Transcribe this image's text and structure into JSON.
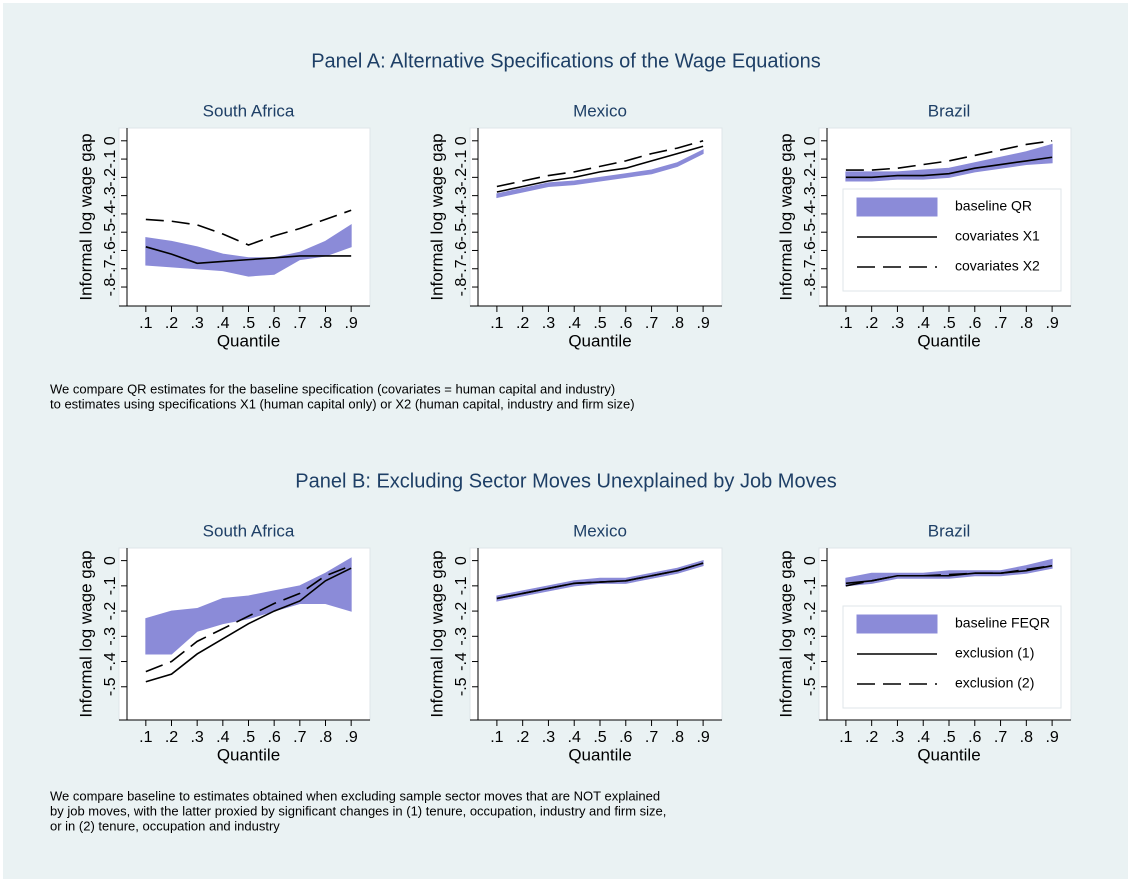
{
  "panels": [
    {
      "title": "Panel A: Alternative Specifications of the Wage Equations",
      "note": [
        "We compare QR estimates for the baseline specification (covariates = human capital and industry)",
        "to estimates using specifications X1 (human capital only) or X2 (human capital, industry and firm size)"
      ]
    },
    {
      "title": "Panel B: Excluding Sector Moves Unexplained by Job Moves",
      "note": [
        "We compare baseline to estimates obtained when excluding sample sector moves that are NOT explained",
        "by job moves, with the latter proxied by significant changes in (1) tenure, occupation, industry and firm size,",
        "or in (2) tenure, occupation and industry"
      ]
    }
  ],
  "chart_data": [
    {
      "type": "line",
      "title": "South Africa",
      "x_label": "Quantile",
      "y_label": "Informal log wage gap",
      "x": [
        0.1,
        0.2,
        0.3,
        0.4,
        0.5,
        0.6,
        0.7,
        0.8,
        0.9
      ],
      "xlim": [
        0.05,
        0.95
      ],
      "xticks": [
        {
          "value": 0.1,
          "label": ".1"
        },
        {
          "value": 0.2,
          "label": ".2"
        },
        {
          "value": 0.3,
          "label": ".3"
        },
        {
          "value": 0.4,
          "label": ".4"
        },
        {
          "value": 0.5,
          "label": ".5"
        },
        {
          "value": 0.6,
          "label": ".6"
        },
        {
          "value": 0.7,
          "label": ".7"
        },
        {
          "value": 0.8,
          "label": ".8"
        },
        {
          "value": 0.9,
          "label": ".9"
        }
      ],
      "ylim": [
        -0.86,
        0.07
      ],
      "yticks": [
        {
          "value": -0.8,
          "label": "-.8"
        },
        {
          "value": -0.7,
          "label": "-.7"
        },
        {
          "value": -0.6,
          "label": "-.6"
        },
        {
          "value": -0.5,
          "label": "-.5"
        },
        {
          "value": -0.4,
          "label": "-.4"
        },
        {
          "value": -0.3,
          "label": "-.3"
        },
        {
          "value": -0.2,
          "label": "-.2"
        },
        {
          "value": -0.1,
          "label": "-.1"
        },
        0
      ],
      "series": [
        {
          "color": "#8b8bd8",
          "upper": [
            -0.53,
            -0.55,
            -0.58,
            -0.62,
            -0.64,
            -0.64,
            -0.61,
            -0.55,
            -0.46
          ],
          "lower": [
            -0.68,
            -0.69,
            -0.7,
            -0.71,
            -0.74,
            -0.73,
            -0.65,
            -0.63,
            -0.58
          ]
        },
        {
          "color": "#000000",
          "dash": false,
          "values": [
            -0.58,
            -0.62,
            -0.67,
            -0.66,
            -0.65,
            -0.64,
            -0.63,
            -0.63,
            -0.63
          ]
        },
        {
          "color": "#000000",
          "dash": true,
          "values": [
            -0.43,
            -0.44,
            -0.46,
            -0.51,
            -0.57,
            -0.52,
            -0.48,
            -0.43,
            -0.38
          ]
        }
      ]
    },
    {
      "type": "line",
      "title": "Mexico",
      "x_label": "Quantile",
      "y_label": "Informal log wage gap",
      "x": [
        0.1,
        0.2,
        0.3,
        0.4,
        0.5,
        0.6,
        0.7,
        0.8,
        0.9
      ],
      "xlim": [
        0.05,
        0.95
      ],
      "xticks": [
        {
          "value": 0.1,
          "label": ".1"
        },
        {
          "value": 0.2,
          "label": ".2"
        },
        {
          "value": 0.3,
          "label": ".3"
        },
        {
          "value": 0.4,
          "label": ".4"
        },
        {
          "value": 0.5,
          "label": ".5"
        },
        {
          "value": 0.6,
          "label": ".6"
        },
        {
          "value": 0.7,
          "label": ".7"
        },
        {
          "value": 0.8,
          "label": ".8"
        },
        {
          "value": 0.9,
          "label": ".9"
        }
      ],
      "ylim": [
        -0.86,
        0.07
      ],
      "yticks": [
        {
          "value": -0.8,
          "label": "-.8"
        },
        {
          "value": -0.7,
          "label": "-.7"
        },
        {
          "value": -0.6,
          "label": "-.6"
        },
        {
          "value": -0.5,
          "label": "-.5"
        },
        {
          "value": -0.4,
          "label": "-.4"
        },
        {
          "value": -0.3,
          "label": "-.3"
        },
        {
          "value": -0.2,
          "label": "-.2"
        },
        {
          "value": -0.1,
          "label": "-.1"
        },
        0
      ],
      "series": [
        {
          "color": "#8b8bd8",
          "upper": [
            -0.29,
            -0.26,
            -0.23,
            -0.22,
            -0.2,
            -0.18,
            -0.16,
            -0.12,
            -0.05
          ],
          "lower": [
            -0.31,
            -0.28,
            -0.25,
            -0.24,
            -0.22,
            -0.2,
            -0.18,
            -0.14,
            -0.07
          ]
        },
        {
          "color": "#000000",
          "dash": false,
          "values": [
            -0.28,
            -0.25,
            -0.22,
            -0.2,
            -0.17,
            -0.15,
            -0.11,
            -0.07,
            -0.03
          ]
        },
        {
          "color": "#000000",
          "dash": true,
          "values": [
            -0.25,
            -0.22,
            -0.19,
            -0.17,
            -0.14,
            -0.11,
            -0.07,
            -0.04,
            0.0
          ]
        }
      ]
    },
    {
      "type": "line",
      "title": "Brazil",
      "x_label": "Quantile",
      "y_label": "Informal log wage gap",
      "legend": "right",
      "x": [
        0.1,
        0.2,
        0.3,
        0.4,
        0.5,
        0.6,
        0.7,
        0.8,
        0.9
      ],
      "xlim": [
        0.05,
        0.95
      ],
      "xticks": [
        {
          "value": 0.1,
          "label": ".1"
        },
        {
          "value": 0.2,
          "label": ".2"
        },
        {
          "value": 0.3,
          "label": ".3"
        },
        {
          "value": 0.4,
          "label": ".4"
        },
        {
          "value": 0.5,
          "label": ".5"
        },
        {
          "value": 0.6,
          "label": ".6"
        },
        {
          "value": 0.7,
          "label": ".7"
        },
        {
          "value": 0.8,
          "label": ".8"
        },
        {
          "value": 0.9,
          "label": ".9"
        }
      ],
      "ylim": [
        -0.86,
        0.07
      ],
      "yticks": [
        {
          "value": -0.8,
          "label": "-.8"
        },
        {
          "value": -0.7,
          "label": "-.7"
        },
        {
          "value": -0.6,
          "label": "-.6"
        },
        {
          "value": -0.5,
          "label": "-.5"
        },
        {
          "value": -0.4,
          "label": "-.4"
        },
        {
          "value": -0.3,
          "label": "-.3"
        },
        {
          "value": -0.2,
          "label": "-.2"
        },
        {
          "value": -0.1,
          "label": "-.1"
        },
        0
      ],
      "series": [
        {
          "name": "baseline QR",
          "color": "#8b8bd8",
          "upper": [
            -0.17,
            -0.17,
            -0.17,
            -0.16,
            -0.15,
            -0.12,
            -0.09,
            -0.06,
            -0.02
          ],
          "lower": [
            -0.22,
            -0.22,
            -0.21,
            -0.21,
            -0.2,
            -0.17,
            -0.15,
            -0.13,
            -0.12
          ]
        },
        {
          "name": "covariates X1",
          "color": "#000000",
          "dash": false,
          "values": [
            -0.2,
            -0.2,
            -0.19,
            -0.19,
            -0.18,
            -0.15,
            -0.13,
            -0.11,
            -0.09
          ]
        },
        {
          "name": "covariates X2",
          "color": "#000000",
          "dash": true,
          "values": [
            -0.16,
            -0.16,
            -0.15,
            -0.13,
            -0.11,
            -0.08,
            -0.05,
            -0.02,
            0.0
          ]
        }
      ]
    },
    {
      "type": "line",
      "title": "South Africa",
      "x_label": "Quantile",
      "y_label": "Informal log wage gap",
      "x": [
        0.1,
        0.2,
        0.3,
        0.4,
        0.5,
        0.6,
        0.7,
        0.8,
        0.9
      ],
      "xlim": [
        0.05,
        0.95
      ],
      "xticks": [
        {
          "value": 0.1,
          "label": ".1"
        },
        {
          "value": 0.2,
          "label": ".2"
        },
        {
          "value": 0.3,
          "label": ".3"
        },
        {
          "value": 0.4,
          "label": ".4"
        },
        {
          "value": 0.5,
          "label": ".5"
        },
        {
          "value": 0.6,
          "label": ".6"
        },
        {
          "value": 0.7,
          "label": ".7"
        },
        {
          "value": 0.8,
          "label": ".8"
        },
        {
          "value": 0.9,
          "label": ".9"
        }
      ],
      "ylim": [
        -0.6,
        0.05
      ],
      "yticks": [
        {
          "value": -0.5,
          "label": "-.5"
        },
        {
          "value": -0.4,
          "label": "-.4"
        },
        {
          "value": -0.3,
          "label": "-.3"
        },
        {
          "value": -0.2,
          "label": "-.2"
        },
        {
          "value": -0.1,
          "label": "-.1"
        },
        0
      ],
      "series": [
        {
          "color": "#8b8bd8",
          "upper": [
            -0.23,
            -0.2,
            -0.19,
            -0.15,
            -0.14,
            -0.12,
            -0.1,
            -0.05,
            0.01
          ],
          "lower": [
            -0.37,
            -0.37,
            -0.28,
            -0.25,
            -0.23,
            -0.2,
            -0.17,
            -0.17,
            -0.2
          ]
        },
        {
          "color": "#000000",
          "dash": false,
          "values": [
            -0.48,
            -0.45,
            -0.37,
            -0.31,
            -0.25,
            -0.2,
            -0.16,
            -0.08,
            -0.03
          ]
        },
        {
          "color": "#000000",
          "dash": true,
          "values": [
            -0.44,
            -0.4,
            -0.32,
            -0.27,
            -0.22,
            -0.17,
            -0.13,
            -0.06,
            -0.02
          ]
        }
      ]
    },
    {
      "type": "line",
      "title": "Mexico",
      "x_label": "Quantile",
      "y_label": "Informal log wage gap",
      "x": [
        0.1,
        0.2,
        0.3,
        0.4,
        0.5,
        0.6,
        0.7,
        0.8,
        0.9
      ],
      "xlim": [
        0.05,
        0.95
      ],
      "xticks": [
        {
          "value": 0.1,
          "label": ".1"
        },
        {
          "value": 0.2,
          "label": ".2"
        },
        {
          "value": 0.3,
          "label": ".3"
        },
        {
          "value": 0.4,
          "label": ".4"
        },
        {
          "value": 0.5,
          "label": ".5"
        },
        {
          "value": 0.6,
          "label": ".6"
        },
        {
          "value": 0.7,
          "label": ".7"
        },
        {
          "value": 0.8,
          "label": ".8"
        },
        {
          "value": 0.9,
          "label": ".9"
        }
      ],
      "ylim": [
        -0.6,
        0.05
      ],
      "yticks": [
        {
          "value": -0.5,
          "label": "-.5"
        },
        {
          "value": -0.4,
          "label": "-.4"
        },
        {
          "value": -0.3,
          "label": "-.3"
        },
        {
          "value": -0.2,
          "label": "-.2"
        },
        {
          "value": -0.1,
          "label": "-.1"
        },
        0
      ],
      "series": [
        {
          "color": "#8b8bd8",
          "upper": [
            -0.14,
            -0.12,
            -0.1,
            -0.08,
            -0.07,
            -0.07,
            -0.05,
            -0.03,
            0.0
          ],
          "lower": [
            -0.16,
            -0.14,
            -0.12,
            -0.1,
            -0.09,
            -0.09,
            -0.07,
            -0.05,
            -0.02
          ]
        },
        {
          "color": "#000000",
          "dash": false,
          "values": [
            -0.15,
            -0.13,
            -0.11,
            -0.09,
            -0.085,
            -0.08,
            -0.06,
            -0.04,
            -0.01
          ]
        },
        {
          "color": "#000000",
          "dash": true,
          "values": [
            -0.15,
            -0.13,
            -0.11,
            -0.09,
            -0.085,
            -0.08,
            -0.06,
            -0.04,
            -0.01
          ]
        }
      ]
    },
    {
      "type": "line",
      "title": "Brazil",
      "x_label": "Quantile",
      "y_label": "Informal log wage gap",
      "legend": "right",
      "x": [
        0.1,
        0.2,
        0.3,
        0.4,
        0.5,
        0.6,
        0.7,
        0.8,
        0.9
      ],
      "xlim": [
        0.05,
        0.95
      ],
      "xticks": [
        {
          "value": 0.1,
          "label": ".1"
        },
        {
          "value": 0.2,
          "label": ".2"
        },
        {
          "value": 0.3,
          "label": ".3"
        },
        {
          "value": 0.4,
          "label": ".4"
        },
        {
          "value": 0.5,
          "label": ".5"
        },
        {
          "value": 0.6,
          "label": ".6"
        },
        {
          "value": 0.7,
          "label": ".7"
        },
        {
          "value": 0.8,
          "label": ".8"
        },
        {
          "value": 0.9,
          "label": ".9"
        }
      ],
      "ylim": [
        -0.6,
        0.05
      ],
      "yticks": [
        {
          "value": -0.5,
          "label": "-.5"
        },
        {
          "value": -0.4,
          "label": "-.4"
        },
        {
          "value": -0.3,
          "label": "-.3"
        },
        {
          "value": -0.2,
          "label": "-.2"
        },
        {
          "value": -0.1,
          "label": "-.1"
        },
        0
      ],
      "series": [
        {
          "name": "baseline FEQR",
          "color": "#8b8bd8",
          "upper": [
            -0.07,
            -0.05,
            -0.05,
            -0.05,
            -0.04,
            -0.04,
            -0.04,
            -0.02,
            0.005
          ],
          "lower": [
            -0.1,
            -0.09,
            -0.07,
            -0.07,
            -0.07,
            -0.06,
            -0.06,
            -0.05,
            -0.03
          ]
        },
        {
          "name": "exclusion (1)",
          "color": "#000000",
          "dash": false,
          "values": [
            -0.09,
            -0.08,
            -0.06,
            -0.06,
            -0.06,
            -0.05,
            -0.05,
            -0.04,
            -0.02
          ]
        },
        {
          "name": "exclusion (2)",
          "color": "#000000",
          "dash": true,
          "values": [
            -0.1,
            -0.08,
            -0.06,
            -0.06,
            -0.055,
            -0.05,
            -0.05,
            -0.035,
            -0.02
          ]
        }
      ]
    }
  ]
}
